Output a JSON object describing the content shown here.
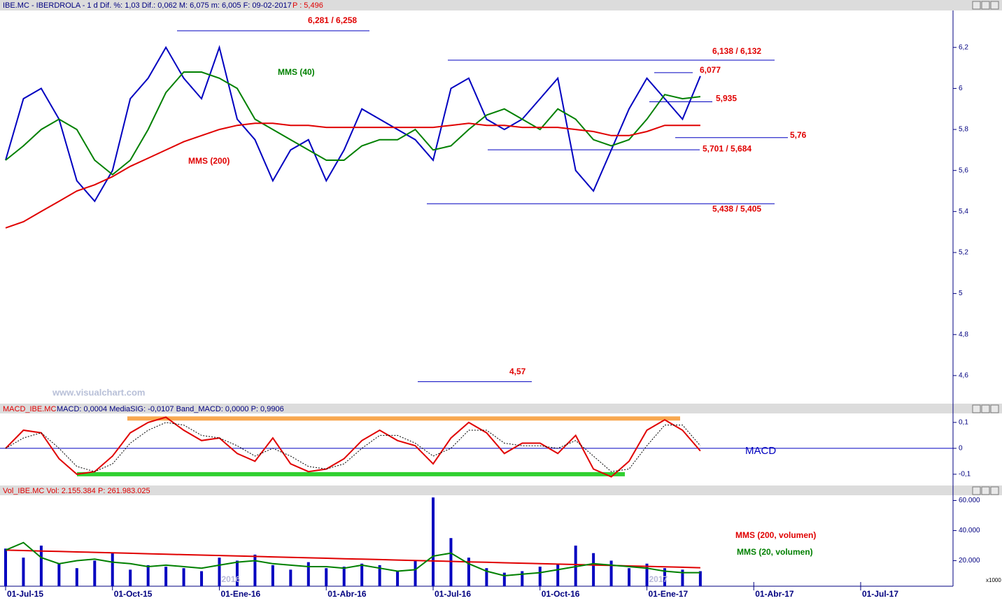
{
  "chart_data": [
    {
      "type": "line",
      "title": "IBE.MC - IBERDROLA - 1 d Dif. %: 1,03 Dif.: 0,062 M: 6,075 m: 6,005 F: 09-02-2017",
      "subtitle": "P : 5,496",
      "watermark": "www.visualchart.com",
      "categories": [
        "01-Jul-15",
        null,
        null,
        null,
        null,
        null,
        "01-Oct-15",
        null,
        null,
        null,
        null,
        null,
        "01-Ene-16",
        null,
        null,
        null,
        null,
        null,
        "01-Abr-16",
        null,
        null,
        null,
        null,
        null,
        "01-Jul-16",
        null,
        null,
        null,
        null,
        null,
        "01-Oct-16",
        null,
        null,
        null,
        null,
        null,
        "01-Ene-17",
        null,
        null,
        null,
        null,
        null,
        "01-Abr-17",
        null,
        null,
        null,
        null,
        null,
        "01-Jul-17"
      ],
      "series": [
        {
          "color": "#0000c0",
          "values": [
            5.65,
            5.95,
            6.0,
            5.85,
            5.55,
            5.45,
            5.6,
            5.95,
            6.05,
            6.2,
            6.05,
            5.95,
            6.2,
            5.85,
            5.75,
            5.55,
            5.7,
            5.75,
            5.55,
            5.7,
            5.9,
            5.85,
            5.8,
            5.75,
            5.65,
            6.0,
            6.05,
            5.85,
            5.8,
            5.85,
            5.95,
            6.05,
            5.6,
            5.5,
            5.7,
            5.9,
            6.05,
            5.95,
            5.85,
            6.06,
            null,
            null,
            null,
            null,
            null,
            null,
            null,
            null,
            null
          ]
        },
        {
          "name": "MMS (40)",
          "color": "#008000",
          "values": [
            5.65,
            5.72,
            5.8,
            5.85,
            5.8,
            5.65,
            5.58,
            5.65,
            5.8,
            5.98,
            6.08,
            6.08,
            6.05,
            6.0,
            5.85,
            5.8,
            5.75,
            5.7,
            5.65,
            5.65,
            5.72,
            5.75,
            5.75,
            5.8,
            5.7,
            5.72,
            5.8,
            5.87,
            5.9,
            5.85,
            5.8,
            5.9,
            5.85,
            5.75,
            5.72,
            5.75,
            5.85,
            5.97,
            5.95,
            5.96,
            null,
            null,
            null,
            null,
            null,
            null,
            null,
            null,
            null
          ]
        },
        {
          "name": "MMS (200)",
          "color": "#e00000",
          "values": [
            5.32,
            5.35,
            5.4,
            5.45,
            5.5,
            5.53,
            5.57,
            5.62,
            5.66,
            5.7,
            5.74,
            5.77,
            5.8,
            5.82,
            5.83,
            5.83,
            5.82,
            5.82,
            5.81,
            5.81,
            5.81,
            5.81,
            5.81,
            5.81,
            5.81,
            5.82,
            5.83,
            5.82,
            5.82,
            5.81,
            5.81,
            5.81,
            5.8,
            5.79,
            5.77,
            5.77,
            5.79,
            5.82,
            5.82,
            5.82,
            null,
            null,
            null,
            null,
            null,
            null,
            null,
            null,
            null
          ]
        }
      ],
      "ylim": [
        4.47,
        6.38
      ],
      "yticks": [
        {
          "value": 4.6,
          "label": "4,6"
        },
        {
          "value": 4.8,
          "label": "4,8"
        },
        5,
        {
          "value": 5.2,
          "label": "5,2"
        },
        {
          "value": 5.4,
          "label": "5,4"
        },
        {
          "value": 5.6,
          "label": "5,6"
        },
        {
          "value": 5.8,
          "label": "5,8"
        },
        6,
        {
          "value": 6.2,
          "label": "6,2"
        }
      ],
      "annotations": [
        {
          "label": "6,281 / 6,258",
          "value": 6.281
        },
        {
          "label": "6,138 / 6,132",
          "value": 6.138
        },
        {
          "label": "6,077",
          "value": 6.077
        },
        {
          "label": "5,935",
          "value": 5.935
        },
        {
          "label": "5,76",
          "value": 5.76
        },
        {
          "label": "5,701 / 5,684",
          "value": 5.701
        },
        {
          "label": "5,438 / 5,405",
          "value": 5.438
        },
        {
          "label": "4,57",
          "value": 4.57
        }
      ]
    },
    {
      "type": "line",
      "title": "MACD_IBE.MC",
      "subtitle": "MACD: 0,0004 MediaSIG: -0,0107 Band_MACD: 0,0000 P: 0,9906",
      "label": "MACD",
      "series": [
        {
          "color": "#e00000",
          "values": [
            0.0,
            0.07,
            0.06,
            -0.04,
            -0.1,
            -0.09,
            -0.03,
            0.06,
            0.1,
            0.12,
            0.07,
            0.03,
            0.04,
            -0.02,
            -0.05,
            0.04,
            -0.06,
            -0.09,
            -0.08,
            -0.04,
            0.03,
            0.07,
            0.03,
            0.01,
            -0.06,
            0.04,
            0.1,
            0.06,
            -0.02,
            0.02,
            0.02,
            -0.02,
            0.05,
            -0.08,
            -0.11,
            -0.05,
            0.07,
            0.11,
            0.07,
            -0.01,
            null,
            null,
            null,
            null,
            null,
            null,
            null,
            null,
            null
          ]
        },
        {
          "color": "#000000",
          "values": [
            0.0,
            0.04,
            0.06,
            0.0,
            -0.07,
            -0.09,
            -0.06,
            0.02,
            0.07,
            0.1,
            0.09,
            0.05,
            0.04,
            0.01,
            -0.03,
            0.0,
            -0.03,
            -0.07,
            -0.08,
            -0.06,
            0.0,
            0.05,
            0.05,
            0.02,
            -0.03,
            0.0,
            0.07,
            0.07,
            0.02,
            0.01,
            0.01,
            0.0,
            0.03,
            -0.03,
            -0.09,
            -0.08,
            0.01,
            0.09,
            0.09,
            0.01,
            null,
            null,
            null,
            null,
            null,
            null,
            null,
            null,
            null
          ]
        }
      ],
      "bands": [
        {
          "value": 0.115,
          "color": "#f8a850"
        },
        {
          "value": -0.1,
          "color": "#30d030"
        }
      ],
      "ylim": [
        -0.138,
        0.132
      ],
      "yticks": [
        {
          "value": -0.1,
          "label": "-0,1"
        },
        0,
        {
          "value": 0.1,
          "label": "0,1"
        }
      ]
    },
    {
      "type": "bar",
      "title": "Vol_IBE.MC Vol: 2.155.384",
      "subtitle": "P: 261.983.025",
      "color": "#0000c0",
      "values": [
        28000,
        22000,
        30000,
        18000,
        15000,
        20000,
        25000,
        14000,
        17000,
        16000,
        15000,
        13000,
        22000,
        20000,
        24000,
        17000,
        14000,
        19000,
        15000,
        16000,
        18000,
        17000,
        13000,
        20000,
        62000,
        35000,
        22000,
        15000,
        12000,
        13000,
        16000,
        18000,
        30000,
        25000,
        20000,
        15000,
        18000,
        15000,
        14000,
        13000,
        null,
        null,
        null,
        null,
        null,
        null,
        null,
        null,
        null
      ],
      "series": [
        {
          "name": "MMS (200, volumen)",
          "color": "#e00000",
          "values": [
            27000,
            26700,
            26400,
            26100,
            25800,
            25500,
            25200,
            24900,
            24600,
            24300,
            24000,
            23700,
            23400,
            23100,
            22800,
            22500,
            22200,
            21900,
            21600,
            21300,
            21000,
            20700,
            20400,
            20100,
            19800,
            19500,
            19200,
            18900,
            18600,
            18300,
            18000,
            17700,
            17400,
            17100,
            16800,
            16500,
            16200,
            15900,
            15600,
            15300,
            null,
            null,
            null,
            null,
            null,
            null,
            null,
            null,
            null
          ]
        },
        {
          "name": "MMS (20, volumen)",
          "color": "#008000",
          "values": [
            27000,
            32000,
            22000,
            18000,
            20000,
            21000,
            19000,
            18000,
            16000,
            17000,
            16000,
            15000,
            17000,
            19000,
            20000,
            18000,
            17000,
            16000,
            16000,
            15000,
            17000,
            15000,
            13000,
            14000,
            23000,
            25000,
            18000,
            13000,
            10000,
            11000,
            12000,
            14000,
            16000,
            18000,
            17000,
            16000,
            15000,
            13000,
            12000,
            12000,
            null,
            null,
            null,
            null,
            null,
            null,
            null,
            null,
            null
          ]
        }
      ],
      "ylim": [
        3000,
        63000
      ],
      "yticks": [
        {
          "value": 20000,
          "label": "20.000"
        },
        {
          "value": 40000,
          "label": "40.000"
        },
        {
          "value": 60000,
          "label": "60.000"
        }
      ],
      "unit_label": "x1000",
      "year_labels": [
        "2016",
        "2017"
      ]
    }
  ]
}
